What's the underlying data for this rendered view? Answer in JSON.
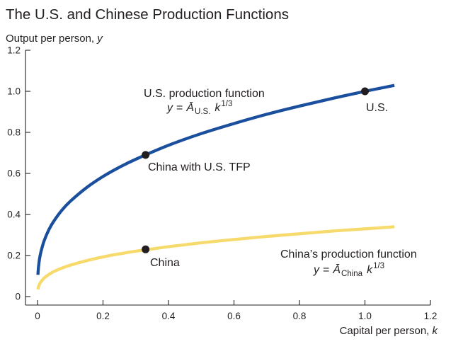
{
  "chart_data": {
    "type": "line",
    "title": "The U.S. and Chinese Production Functions",
    "ylabel": {
      "text": "Output per person, ",
      "variable": "y"
    },
    "xlabel": {
      "text": "Capital per person, ",
      "variable": "k"
    },
    "xlim": [
      0,
      1.2
    ],
    "ylim": [
      0,
      1.2
    ],
    "x_ticks": [
      "0",
      "0.2",
      "0.4",
      "0.6",
      "0.8",
      "1.0",
      "1.2"
    ],
    "y_ticks": [
      "0",
      "0.2",
      "0.4",
      "0.6",
      "0.8",
      "1.0",
      "1.2"
    ],
    "grid": false,
    "x": [
      0.0012,
      0.003,
      0.006,
      0.01,
      0.02,
      0.035,
      0.05,
      0.075,
      0.1,
      0.15,
      0.2,
      0.25,
      0.3,
      0.4,
      0.5,
      0.6,
      0.7,
      0.8,
      0.9,
      1.0,
      1.09
    ],
    "series": [
      {
        "name": "U.S. production function",
        "color": "#1a4f9d",
        "equation": {
          "lhs": "y",
          "equals": "=",
          "coefficient": "Ā",
          "subscript": "U.S.",
          "variable": "k",
          "exponent": "1/3"
        },
        "values": [
          0.106,
          0.144,
          0.182,
          0.215,
          0.271,
          0.327,
          0.368,
          0.422,
          0.464,
          0.531,
          0.585,
          0.63,
          0.669,
          0.737,
          0.794,
          0.843,
          0.888,
          0.928,
          0.965,
          1.0,
          1.029
        ]
      },
      {
        "name": "China’s production function",
        "color": "#f7da6c",
        "equation": {
          "lhs": "y",
          "equals": "=",
          "coefficient": "Ā",
          "subscript": "China",
          "variable": "k",
          "exponent": "1/3"
        },
        "values": [
          0.035,
          0.048,
          0.06,
          0.071,
          0.09,
          0.108,
          0.122,
          0.139,
          0.153,
          0.175,
          0.193,
          0.208,
          0.221,
          0.243,
          0.262,
          0.278,
          0.293,
          0.306,
          0.319,
          0.33,
          0.34
        ]
      }
    ],
    "points": [
      {
        "label": "U.S.",
        "x": 1.0,
        "y": 1.0
      },
      {
        "label": "China with U.S. TFP",
        "x": 0.33,
        "y": 0.69
      },
      {
        "label": "China",
        "x": 0.33,
        "y": 0.23
      }
    ],
    "point_color": "#231f20"
  }
}
